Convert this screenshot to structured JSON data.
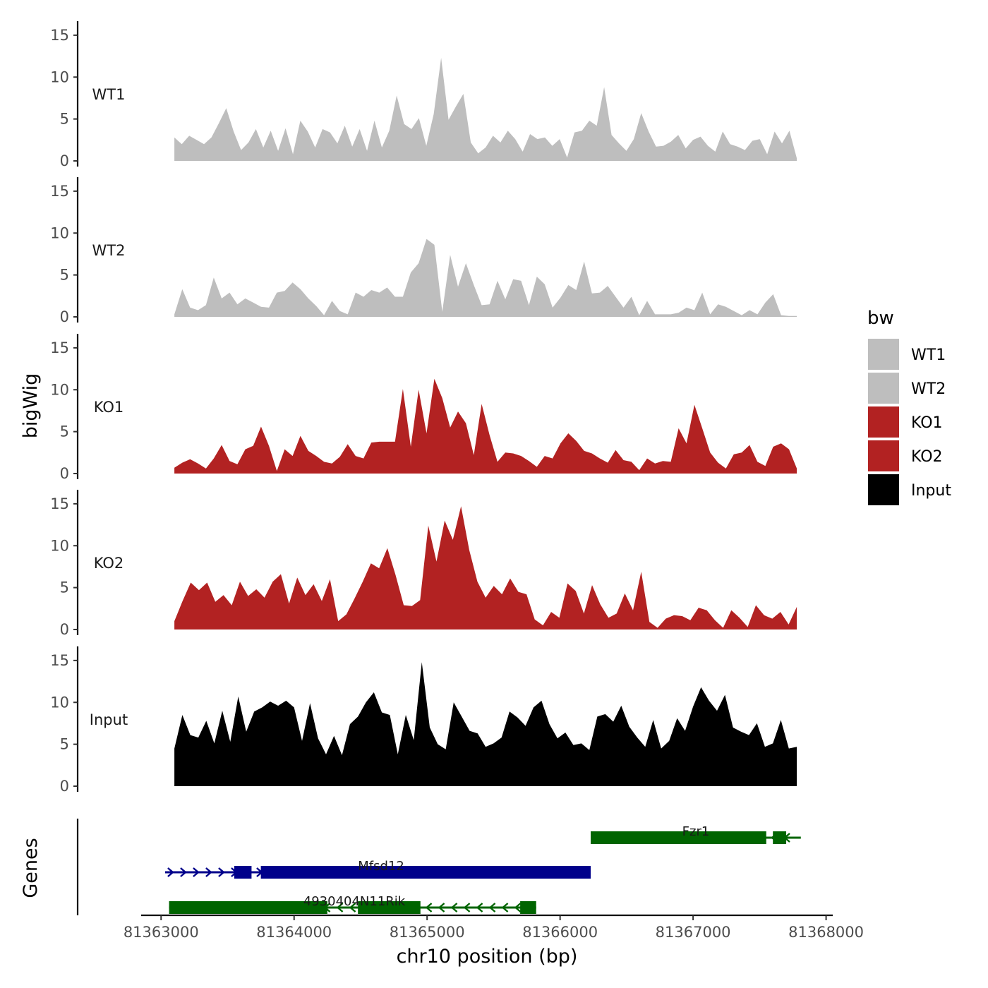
{
  "chart_data": {
    "type": "area",
    "ylabel": "bigWig",
    "genes_label": "Genes",
    "xlabel": "chr10 position (bp)",
    "xlim": [
      81362850,
      81368050
    ],
    "data_xrange": [
      81363100,
      81367780
    ],
    "ylim": [
      0,
      16
    ],
    "y_ticks": [
      "0",
      "5",
      "10",
      "15"
    ],
    "x_ticks": [
      "81363000",
      "81364000",
      "81365000",
      "81366000",
      "81367000",
      "81368000"
    ],
    "legend": {
      "title": "bw",
      "entries": [
        {
          "label": "WT1",
          "color": "#bebebe"
        },
        {
          "label": "WT2",
          "color": "#bebebe"
        },
        {
          "label": "KO1",
          "color": "#b22222"
        },
        {
          "label": "KO2",
          "color": "#b22222"
        },
        {
          "label": "Input",
          "color": "#000000"
        }
      ]
    },
    "series": [
      {
        "name": "WT1",
        "color": "#bebebe",
        "values": [
          2.8,
          2,
          3,
          2.5,
          2,
          2.8,
          4.5,
          6.3,
          3.5,
          1.3,
          2.2,
          3.8,
          1.6,
          3.6,
          1.2,
          3.9,
          0.8,
          4.8,
          3.5,
          1.6,
          3.8,
          3.4,
          2.1,
          4.2,
          1.7,
          3.8,
          1.2,
          4.8,
          1.6,
          3.6,
          7.8,
          4.4,
          3.8,
          5.1,
          1.8,
          5.6,
          12.3,
          4.9,
          6.5,
          8,
          2.2,
          0.9,
          1.6,
          3,
          2.2,
          3.6,
          2.6,
          1.1,
          3.2,
          2.6,
          2.8,
          1.8,
          2.6,
          0.4,
          3.4,
          3.6,
          4.8,
          4.2,
          8.8,
          3.1,
          2.1,
          1.2,
          2.6,
          5.7,
          3.5,
          1.7,
          1.8,
          2.3,
          3.1,
          1.5,
          2.5,
          2.9,
          1.8,
          1.1,
          3.5,
          2,
          1.7,
          1.3,
          2.4,
          2.6,
          0.8,
          3.5,
          2.1,
          3.6,
          0.3
        ]
      },
      {
        "name": "WT2",
        "color": "#bebebe",
        "values": [
          0.3,
          3.3,
          1.1,
          0.8,
          1.4,
          4.7,
          2.2,
          2.9,
          1.5,
          2.2,
          1.7,
          1.2,
          1.1,
          2.9,
          3.1,
          4.1,
          3.3,
          2.2,
          1.3,
          0.2,
          1.9,
          0.7,
          0.3,
          2.9,
          2.4,
          3.2,
          2.9,
          3.5,
          2.4,
          2.4,
          5.3,
          6.4,
          9.3,
          8.6,
          0.6,
          7.4,
          3.6,
          6.4,
          3.8,
          1.4,
          1.5,
          4.3,
          2.1,
          4.5,
          4.3,
          1.4,
          4.8,
          3.9,
          1.1,
          2.3,
          3.8,
          3.2,
          6.6,
          2.8,
          2.9,
          3.7,
          2.4,
          1.1,
          2.4,
          0.2,
          1.9,
          0.3,
          0.3,
          0.3,
          0.5,
          1.1,
          0.8,
          2.9,
          0.3,
          1.5,
          1.2,
          0.7,
          0.2,
          0.8,
          0.3,
          1.7,
          2.7,
          0.2,
          0.1,
          0.1
        ]
      },
      {
        "name": "KO1",
        "color": "#b22222",
        "values": [
          0.7,
          1.3,
          1.7,
          1.2,
          0.6,
          1.8,
          3.4,
          1.5,
          1.1,
          2.9,
          3.3,
          5.6,
          3.3,
          0.3,
          2.9,
          2.1,
          4.5,
          2.7,
          2.1,
          1.4,
          1.2,
          2,
          3.5,
          2.1,
          1.8,
          3.7,
          3.8,
          3.8,
          3.8,
          10.1,
          3.2,
          10,
          4.8,
          11.3,
          9,
          5.5,
          7.4,
          6,
          2.2,
          8.3,
          4.6,
          1.4,
          2.5,
          2.4,
          2.1,
          1.5,
          0.8,
          2.1,
          1.8,
          3.6,
          4.8,
          3.9,
          2.7,
          2.4,
          1.8,
          1.3,
          2.8,
          1.6,
          1.4,
          0.4,
          1.8,
          1.2,
          1.5,
          1.4,
          5.4,
          3.6,
          8.2,
          5.4,
          2.5,
          1.3,
          0.6,
          2.3,
          2.5,
          3.4,
          1.4,
          0.9,
          3.2,
          3.6,
          2.9,
          0.6
        ]
      },
      {
        "name": "KO2",
        "color": "#b22222",
        "values": [
          1,
          3.4,
          5.6,
          4.7,
          5.6,
          3.3,
          4.1,
          2.9,
          5.7,
          4,
          4.8,
          3.8,
          5.7,
          6.6,
          3.1,
          6.2,
          4.1,
          5.4,
          3.4,
          6,
          1,
          1.8,
          3.7,
          5.7,
          7.9,
          7.3,
          9.7,
          6.5,
          2.9,
          2.8,
          3.5,
          12.4,
          8.1,
          13,
          10.7,
          14.7,
          9.5,
          5.7,
          3.8,
          5.2,
          4.2,
          6.1,
          4.5,
          4.2,
          1.2,
          0.5,
          2.1,
          1.4,
          5.5,
          4.6,
          1.9,
          5.3,
          3,
          1.4,
          1.9,
          4.3,
          2.3,
          6.9,
          0.9,
          0.2,
          1.3,
          1.7,
          1.6,
          1.1,
          2.6,
          2.3,
          1.1,
          0.2,
          2.3,
          1.4,
          0.3,
          2.9,
          1.7,
          1.3,
          2.1,
          0.6,
          2.7
        ]
      },
      {
        "name": "Input",
        "color": "#000000",
        "values": [
          4.5,
          8.5,
          6.1,
          5.8,
          7.8,
          5.1,
          9,
          5.3,
          10.7,
          6.5,
          8.9,
          9.4,
          10.1,
          9.6,
          10.2,
          9.4,
          5.4,
          9.9,
          5.7,
          3.8,
          6,
          3.7,
          7.4,
          8.3,
          10,
          11.2,
          8.8,
          8.5,
          3.8,
          8.5,
          5.5,
          14.8,
          7,
          5,
          4.4,
          10,
          8.3,
          6.6,
          6.3,
          4.7,
          5.1,
          5.8,
          8.9,
          8.2,
          7.2,
          9.4,
          10.2,
          7.4,
          5.7,
          6.4,
          4.9,
          5.1,
          4.3,
          8.3,
          8.6,
          7.7,
          9.6,
          7.1,
          5.8,
          4.7,
          7.9,
          4.5,
          5.4,
          8.1,
          6.6,
          9.5,
          11.8,
          10.2,
          9,
          10.9,
          7,
          6.5,
          6.1,
          7.5,
          4.7,
          5.1,
          7.9,
          4.5,
          4.7
        ]
      }
    ],
    "genes": [
      {
        "name": "Fzr1",
        "strand": "-",
        "start": 81366230,
        "end": 81367810,
        "color": "#006400",
        "blocks": [
          [
            81366230,
            81367550
          ],
          [
            81367600,
            81367700
          ]
        ]
      },
      {
        "name": "Mfsd12",
        "strand": "+",
        "start": 81363030,
        "end": 81366230,
        "color": "#00008b",
        "blocks": [
          [
            81363550,
            81363680
          ],
          [
            81363750,
            81366230
          ]
        ]
      },
      {
        "name": "4930404N11Rik",
        "strand": "-",
        "start": 81363060,
        "end": 81365820,
        "color": "#006400",
        "blocks": [
          [
            81363060,
            81364250
          ],
          [
            81364480,
            81364950
          ],
          [
            81365700,
            81365820
          ]
        ]
      }
    ]
  }
}
